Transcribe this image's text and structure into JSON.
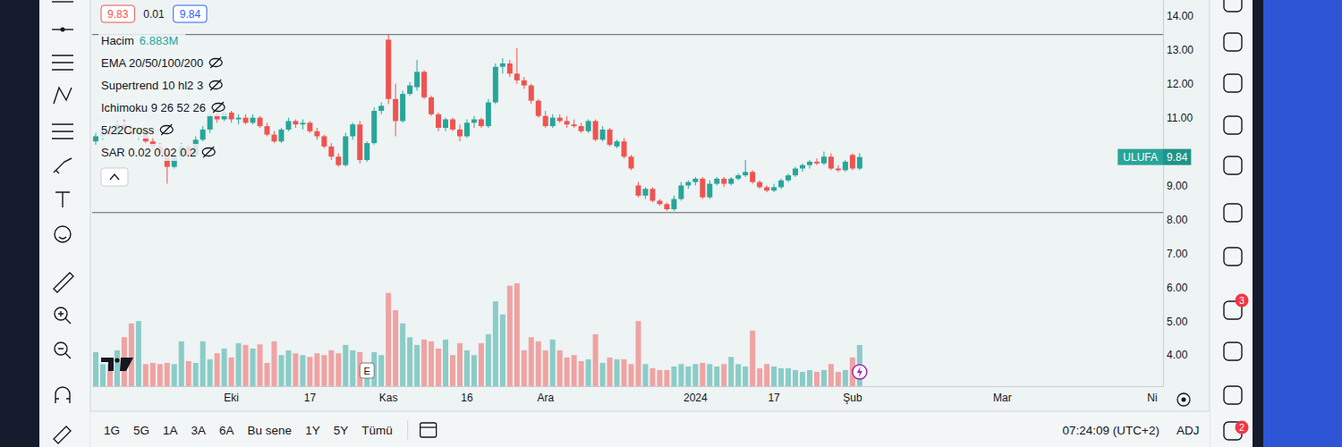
{
  "header": {
    "bid": 9.83,
    "spread": 0.01,
    "ask": 9.84
  },
  "indicators": [
    "EMA 20/50/100/200",
    "Supertrend 10 hl2 3",
    "Ichimoku 9 26 52 26",
    "5/22Cross",
    "SAR 0.02 0.02 0.2"
  ],
  "chart_data": {
    "type": "candlestick",
    "categories": [
      null,
      null,
      null,
      null,
      null,
      null,
      null,
      null,
      null,
      null,
      null,
      null,
      null,
      null,
      null,
      null,
      null,
      null,
      null,
      "Eki",
      null,
      null,
      null,
      null,
      null,
      null,
      null,
      null,
      null,
      null,
      "17",
      null,
      null,
      null,
      null,
      null,
      null,
      null,
      null,
      null,
      null,
      "Kas",
      null,
      null,
      null,
      null,
      null,
      null,
      null,
      null,
      null,
      null,
      "16",
      null,
      null,
      null,
      null,
      null,
      null,
      null,
      null,
      null,
      null,
      "Ara",
      null,
      null,
      null,
      null,
      null,
      null,
      null,
      null,
      null,
      null,
      null,
      null,
      null,
      null,
      null,
      null,
      null,
      null,
      null,
      null,
      "2024",
      null,
      null,
      null,
      null,
      null,
      null,
      null,
      null,
      null,
      null,
      "17",
      null,
      null,
      null,
      null,
      null,
      null,
      null,
      null,
      null,
      null,
      "Şub",
      null,
      null,
      null,
      null,
      null,
      null,
      null,
      null,
      null,
      null,
      null,
      null,
      null,
      null,
      null,
      null,
      null,
      null,
      null,
      null,
      "Mar",
      null,
      null,
      null,
      null,
      null,
      null,
      null,
      null,
      null,
      null,
      null,
      null,
      null,
      null,
      null,
      null,
      null,
      null,
      null,
      null,
      "Ni",
      null
    ],
    "series": [
      {
        "name": "ULUFA",
        "type": "candlestick",
        "open": [
          10.3,
          10.45,
          10.6,
          10.5,
          10.8,
          10.65,
          10.5,
          10.6,
          10.3,
          10.15,
          9.95,
          9.55,
          9.85,
          10.15,
          9.9,
          10.35,
          10.65,
          11.1,
          10.95,
          11.15,
          10.95,
          11.0,
          10.85,
          11.0,
          10.75,
          10.5,
          10.3,
          10.65,
          10.9,
          10.8,
          10.85,
          10.6,
          10.45,
          10.15,
          9.85,
          9.6,
          10.45,
          10.8,
          9.75,
          10.25,
          11.2,
          13.3,
          11.55,
          10.9,
          11.7,
          11.9,
          12.35,
          11.6,
          11.1,
          10.7,
          10.95,
          10.65,
          10.45,
          10.85,
          10.95,
          10.75,
          11.45,
          12.5,
          12.6,
          12.3,
          12.1,
          11.95,
          11.5,
          11.05,
          10.75,
          11.0,
          10.9,
          10.8,
          10.75,
          10.6,
          10.9,
          10.35,
          10.65,
          10.15,
          10.3,
          9.85,
          9.0,
          8.7,
          8.9,
          8.55,
          8.45,
          8.3,
          8.6,
          9.0,
          9.1,
          9.2,
          8.65,
          9.05,
          9.2,
          9.05,
          9.2,
          9.3,
          9.4,
          9.1,
          8.95,
          8.85,
          8.95,
          9.15,
          9.3,
          9.5,
          9.6,
          9.7,
          9.65,
          9.85,
          9.5,
          9.45,
          9.9,
          9.5,
          null,
          null,
          null,
          null,
          null,
          null,
          null,
          null,
          null,
          null,
          null,
          null,
          null,
          null,
          null,
          null,
          null,
          null,
          null,
          null,
          null,
          null,
          null,
          null,
          null,
          null,
          null,
          null,
          null,
          null,
          null,
          null,
          null,
          null,
          null,
          null,
          null,
          null,
          null,
          null,
          null,
          null
        ],
        "high": [
          10.55,
          10.7,
          10.75,
          10.9,
          10.95,
          10.8,
          10.7,
          10.65,
          10.45,
          10.25,
          10.05,
          9.95,
          10.25,
          10.2,
          10.45,
          10.75,
          11.2,
          11.3,
          11.25,
          11.2,
          11.1,
          11.1,
          11.1,
          11.05,
          10.85,
          10.6,
          10.7,
          11.0,
          10.95,
          10.95,
          10.9,
          10.7,
          10.5,
          10.25,
          9.95,
          10.55,
          10.85,
          10.9,
          10.3,
          11.3,
          11.45,
          13.47,
          12.0,
          11.8,
          12.05,
          12.7,
          12.4,
          11.65,
          11.15,
          11.0,
          11.0,
          10.8,
          10.95,
          11.05,
          11.0,
          11.55,
          12.6,
          12.75,
          12.7,
          13.05,
          12.2,
          12.0,
          11.55,
          11.2,
          11.1,
          11.1,
          11.05,
          10.95,
          10.85,
          10.95,
          10.95,
          10.75,
          10.7,
          10.35,
          10.4,
          9.9,
          9.1,
          8.95,
          8.95,
          8.6,
          8.5,
          8.7,
          9.1,
          9.15,
          9.25,
          9.25,
          9.15,
          9.25,
          9.25,
          9.25,
          9.35,
          9.75,
          9.45,
          9.15,
          9.0,
          9.05,
          9.2,
          9.35,
          9.55,
          9.65,
          9.75,
          9.8,
          10.0,
          9.95,
          9.6,
          9.75,
          9.95,
          9.95,
          null,
          null,
          null,
          null,
          null,
          null,
          null,
          null,
          null,
          null,
          null,
          null,
          null,
          null,
          null,
          null,
          null,
          null,
          null,
          null,
          null,
          null,
          null,
          null,
          null,
          null,
          null,
          null,
          null,
          null,
          null,
          null,
          null,
          null,
          null,
          null,
          null,
          null,
          null,
          null,
          null,
          null
        ],
        "low": [
          10.2,
          10.35,
          10.4,
          10.45,
          10.55,
          10.4,
          10.35,
          10.25,
          10.05,
          9.85,
          9.05,
          9.5,
          9.75,
          9.8,
          9.85,
          10.3,
          10.55,
          10.85,
          10.9,
          10.85,
          10.8,
          10.8,
          10.8,
          10.7,
          10.45,
          10.25,
          10.25,
          10.6,
          10.7,
          10.65,
          10.55,
          10.35,
          10.1,
          9.75,
          9.55,
          9.55,
          10.35,
          9.65,
          9.7,
          10.2,
          11.1,
          11.4,
          10.45,
          10.85,
          11.65,
          11.8,
          11.55,
          11.05,
          10.6,
          10.6,
          10.6,
          10.3,
          10.4,
          10.7,
          10.7,
          10.7,
          11.4,
          12.3,
          12.2,
          12.0,
          11.85,
          11.4,
          11.0,
          10.7,
          10.7,
          10.85,
          10.7,
          10.7,
          10.55,
          10.55,
          10.3,
          10.3,
          10.15,
          10.1,
          9.8,
          9.45,
          8.65,
          8.6,
          8.5,
          8.4,
          8.25,
          8.25,
          8.55,
          8.9,
          9.0,
          8.6,
          8.6,
          9.0,
          8.95,
          9.0,
          9.15,
          9.25,
          9.05,
          8.9,
          8.8,
          8.8,
          8.9,
          9.1,
          9.25,
          9.4,
          9.5,
          9.6,
          9.6,
          9.45,
          9.4,
          9.4,
          9.45,
          9.45,
          null,
          null,
          null,
          null,
          null,
          null,
          null,
          null,
          null,
          null,
          null,
          null,
          null,
          null,
          null,
          null,
          null,
          null,
          null,
          null,
          null,
          null,
          null,
          null,
          null,
          null,
          null,
          null,
          null,
          null,
          null,
          null,
          null,
          null,
          null,
          null,
          null,
          null,
          null,
          null,
          null,
          null
        ],
        "close": [
          10.45,
          10.6,
          10.5,
          10.8,
          10.65,
          10.5,
          10.6,
          10.3,
          10.15,
          9.95,
          9.55,
          9.85,
          10.15,
          9.9,
          10.35,
          10.65,
          11.1,
          10.95,
          11.15,
          10.95,
          11.0,
          10.85,
          11.0,
          10.75,
          10.5,
          10.3,
          10.65,
          10.9,
          10.8,
          10.85,
          10.6,
          10.45,
          10.15,
          9.85,
          9.6,
          10.45,
          10.8,
          9.75,
          10.25,
          11.2,
          11.35,
          11.55,
          10.9,
          11.7,
          11.95,
          12.35,
          11.6,
          11.1,
          10.7,
          10.95,
          10.65,
          10.45,
          10.85,
          10.95,
          10.75,
          11.45,
          12.5,
          12.6,
          12.3,
          12.1,
          11.95,
          11.5,
          11.05,
          10.75,
          11.0,
          10.9,
          10.8,
          10.75,
          10.6,
          10.9,
          10.35,
          10.65,
          10.2,
          10.3,
          9.85,
          9.5,
          8.7,
          8.9,
          8.55,
          8.45,
          8.3,
          8.6,
          9.0,
          9.1,
          9.2,
          8.65,
          9.05,
          9.2,
          9.05,
          9.2,
          9.3,
          9.4,
          9.1,
          8.95,
          8.85,
          8.95,
          9.15,
          9.3,
          9.5,
          9.6,
          9.7,
          9.65,
          9.85,
          9.5,
          9.45,
          9.7,
          9.5,
          9.84,
          null,
          null,
          null,
          null,
          null,
          null,
          null,
          null,
          null,
          null,
          null,
          null,
          null,
          null,
          null,
          null,
          null,
          null,
          null,
          null,
          null,
          null,
          null,
          null,
          null,
          null,
          null,
          null,
          null,
          null,
          null,
          null,
          null,
          null,
          null,
          null,
          null,
          null,
          null,
          null,
          null,
          null
        ]
      },
      {
        "name": "Hacim",
        "type": "bar",
        "axis": "y2",
        "readout": "6.883M",
        "values": [
          5.7,
          3.7,
          3.7,
          6.0,
          8.2,
          10.5,
          10.9,
          3.7,
          3.9,
          3.7,
          3.9,
          3.7,
          7.5,
          4.2,
          3.9,
          7.5,
          4.5,
          5.5,
          6.3,
          4.8,
          7.2,
          6.9,
          6.3,
          7.0,
          3.9,
          7.5,
          5.2,
          6.0,
          5.5,
          5.2,
          4.9,
          5.5,
          5.2,
          6.0,
          5.5,
          6.9,
          6.0,
          5.7,
          3.7,
          5.7,
          5.2,
          15.6,
          12.7,
          10.5,
          8.2,
          6.9,
          7.8,
          7.5,
          6.3,
          7.8,
          5.2,
          7.2,
          6.0,
          5.2,
          7.2,
          8.7,
          14.2,
          12.0,
          16.8,
          17.2,
          6.0,
          8.2,
          7.5,
          6.0,
          7.8,
          6.0,
          4.8,
          5.2,
          4.2,
          4.5,
          8.7,
          3.9,
          4.8,
          4.5,
          4.5,
          3.7,
          10.9,
          3.7,
          3.0,
          2.7,
          2.7,
          3.3,
          3.7,
          3.3,
          3.7,
          3.9,
          3.7,
          3.3,
          3.7,
          4.9,
          3.7,
          3.3,
          9.3,
          3.0,
          3.7,
          3.3,
          3.0,
          3.0,
          2.7,
          2.4,
          2.7,
          2.4,
          2.7,
          3.7,
          2.4,
          2.7,
          4.8,
          6.883,
          null,
          null,
          null,
          null,
          null,
          null,
          null,
          null,
          null,
          null,
          null,
          null,
          null,
          null,
          null,
          null,
          null,
          null,
          null,
          null,
          null,
          null,
          null,
          null,
          null,
          null,
          null,
          null,
          null,
          null,
          null,
          null,
          null,
          null,
          null,
          null,
          null,
          null,
          null,
          null,
          null,
          null
        ]
      }
    ],
    "ylim": [
      3.08,
      14.47
    ],
    "yticks": [
      {
        "value": 14,
        "label": "14.00"
      },
      {
        "value": 13,
        "label": "13.00"
      },
      {
        "value": 12,
        "label": "12.00"
      },
      {
        "value": 11,
        "label": "11.00"
      },
      {
        "value": 9,
        "label": "9.00"
      },
      {
        "value": 8,
        "label": "8.00"
      },
      {
        "value": 7,
        "label": "7.00"
      },
      {
        "value": 6,
        "label": "6.00"
      },
      {
        "value": 5,
        "label": "5.00"
      },
      {
        "value": 4,
        "label": "4.00"
      }
    ],
    "y2lim": [
      0,
      64.6
    ],
    "y2ticks": [],
    "hlines": [
      13.45,
      8.2
    ],
    "events": [
      {
        "at": 38,
        "label": "E"
      }
    ],
    "grid": false
  },
  "bottom_bar": {
    "ranges": [
      "1G",
      "5G",
      "1A",
      "3A",
      "6A",
      "Bu sene",
      "1Y",
      "5Y",
      "Tümü"
    ],
    "clock": "07:24:09 (UTC+2)",
    "adj": "ADJ"
  },
  "sidebar_badges": [
    3,
    2
  ]
}
